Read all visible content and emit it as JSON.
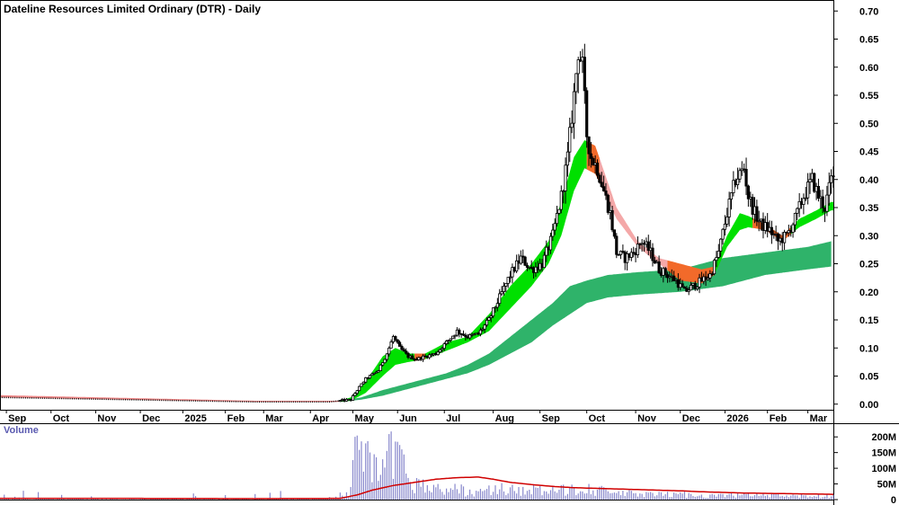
{
  "chart_data": {
    "type": "candlestick",
    "title": "Dateline Resources Limited Ordinary (DTR) - Daily",
    "price_axis": {
      "ylim": [
        -0.01,
        0.71
      ],
      "ticks": [
        "0.70",
        "0.65",
        "0.60",
        "0.55",
        "0.50",
        "0.45",
        "0.40",
        "0.35",
        "0.30",
        "0.25",
        "0.20",
        "0.15",
        "0.10",
        "0.05",
        "0.00"
      ],
      "tick_values": [
        0.7,
        0.65,
        0.6,
        0.55,
        0.5,
        0.45,
        0.4,
        0.35,
        0.3,
        0.25,
        0.2,
        0.15,
        0.1,
        0.05,
        0.0
      ]
    },
    "x_axis": {
      "months": [
        {
          "label": "Sep",
          "x": 3
        },
        {
          "label": "Oct",
          "x": 24
        },
        {
          "label": "Nov",
          "x": 45
        },
        {
          "label": "Dec",
          "x": 66
        },
        {
          "label": "2025",
          "x": 86
        },
        {
          "label": "Feb",
          "x": 106
        },
        {
          "label": "Mar",
          "x": 124
        },
        {
          "label": "Apr",
          "x": 146
        },
        {
          "label": "May",
          "x": 166
        },
        {
          "label": "Jun",
          "x": 187
        },
        {
          "label": "Jul",
          "x": 209
        },
        {
          "label": "Aug",
          "x": 232
        },
        {
          "label": "Sep",
          "x": 254
        },
        {
          "label": "Oct",
          "x": 276
        },
        {
          "label": "Nov",
          "x": 299
        },
        {
          "label": "Dec",
          "x": 320
        },
        {
          "label": "2026",
          "x": 341
        },
        {
          "label": "Feb",
          "x": 361
        },
        {
          "label": "Mar",
          "x": 380
        }
      ],
      "x_range": [
        0,
        392
      ]
    },
    "price_keypoints": [
      [
        0,
        0.012
      ],
      [
        60,
        0.008
      ],
      [
        120,
        0.004
      ],
      [
        155,
        0.004
      ],
      [
        165,
        0.008
      ],
      [
        168,
        0.025
      ],
      [
        172,
        0.045
      ],
      [
        178,
        0.06
      ],
      [
        182,
        0.09
      ],
      [
        185,
        0.12
      ],
      [
        188,
        0.1
      ],
      [
        192,
        0.085
      ],
      [
        196,
        0.08
      ],
      [
        200,
        0.085
      ],
      [
        205,
        0.09
      ],
      [
        210,
        0.11
      ],
      [
        215,
        0.13
      ],
      [
        220,
        0.12
      ],
      [
        225,
        0.125
      ],
      [
        230,
        0.15
      ],
      [
        235,
        0.19
      ],
      [
        240,
        0.23
      ],
      [
        245,
        0.26
      ],
      [
        250,
        0.24
      ],
      [
        255,
        0.25
      ],
      [
        260,
        0.3
      ],
      [
        264,
        0.37
      ],
      [
        267,
        0.44
      ],
      [
        270,
        0.55
      ],
      [
        272,
        0.63
      ],
      [
        274,
        0.6
      ],
      [
        276,
        0.48
      ],
      [
        278,
        0.44
      ],
      [
        281,
        0.42
      ],
      [
        284,
        0.38
      ],
      [
        287,
        0.34
      ],
      [
        290,
        0.27
      ],
      [
        294,
        0.26
      ],
      [
        298,
        0.27
      ],
      [
        302,
        0.29
      ],
      [
        306,
        0.27
      ],
      [
        310,
        0.24
      ],
      [
        314,
        0.23
      ],
      [
        318,
        0.22
      ],
      [
        322,
        0.2
      ],
      [
        326,
        0.21
      ],
      [
        330,
        0.22
      ],
      [
        334,
        0.23
      ],
      [
        338,
        0.27
      ],
      [
        342,
        0.34
      ],
      [
        346,
        0.4
      ],
      [
        350,
        0.42
      ],
      [
        352,
        0.37
      ],
      [
        355,
        0.34
      ],
      [
        358,
        0.32
      ],
      [
        362,
        0.31
      ],
      [
        366,
        0.29
      ],
      [
        370,
        0.3
      ],
      [
        374,
        0.33
      ],
      [
        378,
        0.37
      ],
      [
        382,
        0.4
      ],
      [
        385,
        0.37
      ],
      [
        388,
        0.35
      ],
      [
        391,
        0.4
      ]
    ],
    "fast_ribbon_keypoints": [
      [
        0,
        0.012,
        0.016
      ],
      [
        60,
        0.008,
        0.011
      ],
      [
        120,
        0.004,
        0.006
      ],
      [
        160,
        0.004,
        0.006
      ],
      [
        165,
        0.006,
        0.012
      ],
      [
        172,
        0.02,
        0.04
      ],
      [
        180,
        0.05,
        0.085
      ],
      [
        186,
        0.07,
        0.1
      ],
      [
        192,
        0.075,
        0.09
      ],
      [
        200,
        0.08,
        0.09
      ],
      [
        210,
        0.095,
        0.11
      ],
      [
        220,
        0.11,
        0.12
      ],
      [
        230,
        0.13,
        0.16
      ],
      [
        240,
        0.17,
        0.21
      ],
      [
        250,
        0.21,
        0.25
      ],
      [
        258,
        0.25,
        0.29
      ],
      [
        264,
        0.3,
        0.36
      ],
      [
        270,
        0.38,
        0.44
      ],
      [
        275,
        0.42,
        0.47
      ],
      [
        280,
        0.41,
        0.46
      ],
      [
        290,
        0.33,
        0.35
      ],
      [
        300,
        0.28,
        0.29
      ],
      [
        310,
        0.25,
        0.26
      ],
      [
        320,
        0.22,
        0.25
      ],
      [
        330,
        0.215,
        0.24
      ],
      [
        336,
        0.23,
        0.245
      ],
      [
        342,
        0.28,
        0.3
      ],
      [
        348,
        0.31,
        0.34
      ],
      [
        352,
        0.315,
        0.335
      ],
      [
        360,
        0.31,
        0.32
      ],
      [
        368,
        0.29,
        0.3
      ],
      [
        376,
        0.315,
        0.33
      ],
      [
        384,
        0.33,
        0.345
      ],
      [
        391,
        0.345,
        0.36
      ]
    ],
    "slow_ribbon_keypoints": [
      [
        160,
        0.004,
        0.006
      ],
      [
        170,
        0.008,
        0.012
      ],
      [
        180,
        0.015,
        0.025
      ],
      [
        190,
        0.025,
        0.035
      ],
      [
        200,
        0.035,
        0.045
      ],
      [
        210,
        0.045,
        0.055
      ],
      [
        220,
        0.055,
        0.07
      ],
      [
        230,
        0.07,
        0.09
      ],
      [
        240,
        0.09,
        0.12
      ],
      [
        250,
        0.11,
        0.15
      ],
      [
        260,
        0.14,
        0.18
      ],
      [
        268,
        0.16,
        0.21
      ],
      [
        276,
        0.18,
        0.22
      ],
      [
        286,
        0.19,
        0.23
      ],
      [
        300,
        0.195,
        0.235
      ],
      [
        320,
        0.2,
        0.24
      ],
      [
        340,
        0.21,
        0.26
      ],
      [
        360,
        0.23,
        0.27
      ],
      [
        380,
        0.24,
        0.28
      ],
      [
        391,
        0.245,
        0.29
      ]
    ],
    "ribbon_color_segments": [
      {
        "from": 0,
        "to": 160,
        "color": "#f08a8a"
      },
      {
        "from": 160,
        "to": 195,
        "color": "#00e000"
      },
      {
        "from": 195,
        "to": 200,
        "color": "#f26a2a"
      },
      {
        "from": 200,
        "to": 276,
        "color": "#00e000"
      },
      {
        "from": 276,
        "to": 282,
        "color": "#f26a2a"
      },
      {
        "from": 282,
        "to": 314,
        "color": "#f4a8a8"
      },
      {
        "from": 314,
        "to": 336,
        "color": "#f26a2a"
      },
      {
        "from": 336,
        "to": 354,
        "color": "#00e000"
      },
      {
        "from": 354,
        "to": 372,
        "color": "#f26a2a"
      },
      {
        "from": 372,
        "to": 392,
        "color": "#00e000"
      }
    ],
    "slow_ribbon_color": "#2fb36a",
    "volume": {
      "title": "Volume",
      "ticks": [
        "200M",
        "150M",
        "100M",
        "50M",
        "0"
      ],
      "tick_values": [
        200,
        150,
        100,
        50,
        0
      ],
      "ylim": [
        0,
        235
      ],
      "bar_color": "#8888cc",
      "avg_color": "#d00000",
      "bar_keypoints": [
        [
          0,
          6
        ],
        [
          60,
          5
        ],
        [
          120,
          4
        ],
        [
          150,
          8
        ],
        [
          165,
          30
        ],
        [
          168,
          230
        ],
        [
          170,
          180
        ],
        [
          172,
          150
        ],
        [
          175,
          120
        ],
        [
          178,
          90
        ],
        [
          180,
          100
        ],
        [
          183,
          150
        ],
        [
          186,
          170
        ],
        [
          189,
          130
        ],
        [
          192,
          80
        ],
        [
          196,
          60
        ],
        [
          200,
          50
        ],
        [
          205,
          40
        ],
        [
          210,
          35
        ],
        [
          215,
          40
        ],
        [
          220,
          30
        ],
        [
          225,
          25
        ],
        [
          230,
          35
        ],
        [
          240,
          40
        ],
        [
          250,
          35
        ],
        [
          260,
          30
        ],
        [
          270,
          40
        ],
        [
          276,
          50
        ],
        [
          280,
          35
        ],
        [
          290,
          25
        ],
        [
          300,
          20
        ],
        [
          310,
          18
        ],
        [
          320,
          20
        ],
        [
          330,
          15
        ],
        [
          340,
          15
        ],
        [
          350,
          18
        ],
        [
          360,
          15
        ],
        [
          370,
          12
        ],
        [
          380,
          15
        ],
        [
          391,
          12
        ]
      ],
      "avg_keypoints": [
        [
          0,
          4
        ],
        [
          60,
          4
        ],
        [
          120,
          3
        ],
        [
          160,
          4
        ],
        [
          168,
          15
        ],
        [
          175,
          30
        ],
        [
          185,
          45
        ],
        [
          195,
          55
        ],
        [
          205,
          65
        ],
        [
          215,
          70
        ],
        [
          225,
          72
        ],
        [
          232,
          65
        ],
        [
          240,
          55
        ],
        [
          250,
          48
        ],
        [
          260,
          42
        ],
        [
          270,
          38
        ],
        [
          280,
          36
        ],
        [
          290,
          34
        ],
        [
          300,
          32
        ],
        [
          310,
          30
        ],
        [
          320,
          28
        ],
        [
          330,
          25
        ],
        [
          340,
          23
        ],
        [
          350,
          21
        ],
        [
          360,
          20
        ],
        [
          370,
          19
        ],
        [
          380,
          18
        ],
        [
          391,
          17
        ]
      ]
    }
  }
}
